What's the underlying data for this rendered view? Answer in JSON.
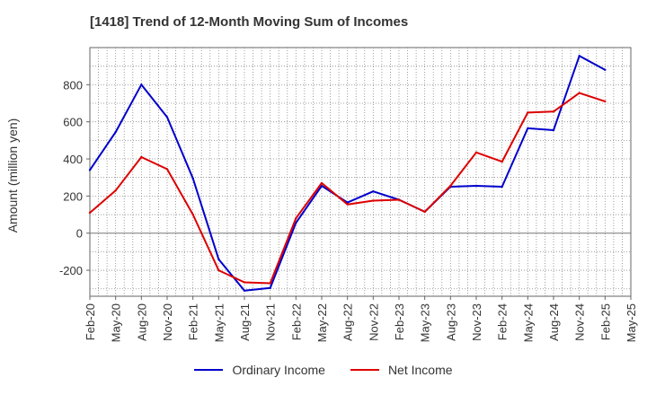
{
  "chart_data": {
    "type": "line",
    "title": "[1418]  Trend of 12-Month Moving Sum of Incomes",
    "xlabel": "",
    "ylabel": "Amount (million yen)",
    "ylim": [
      -340,
      1000
    ],
    "yticks": [
      -200,
      0,
      200,
      400,
      600,
      800
    ],
    "x": [
      "Feb-20",
      "May-20",
      "Aug-20",
      "Nov-20",
      "Feb-21",
      "May-21",
      "Aug-21",
      "Nov-21",
      "Feb-22",
      "May-22",
      "Aug-22",
      "Nov-22",
      "Feb-23",
      "May-23",
      "Aug-23",
      "Nov-23",
      "Feb-24",
      "May-24",
      "Aug-24",
      "Nov-24",
      "Feb-25",
      "May-25"
    ],
    "series": [
      {
        "name": "Ordinary Income",
        "color": "#0000cc",
        "values": [
          340,
          545,
          800,
          625,
          295,
          -140,
          -310,
          -295,
          55,
          255,
          165,
          225,
          180,
          115,
          250,
          255,
          250,
          565,
          555,
          955,
          880,
          null
        ]
      },
      {
        "name": "Net Income",
        "color": "#dd0000",
        "values": [
          110,
          230,
          410,
          345,
          100,
          -200,
          -265,
          -270,
          80,
          270,
          155,
          175,
          180,
          115,
          255,
          435,
          385,
          650,
          655,
          755,
          710,
          null
        ]
      }
    ],
    "grid": true,
    "legend_position": "bottom"
  }
}
